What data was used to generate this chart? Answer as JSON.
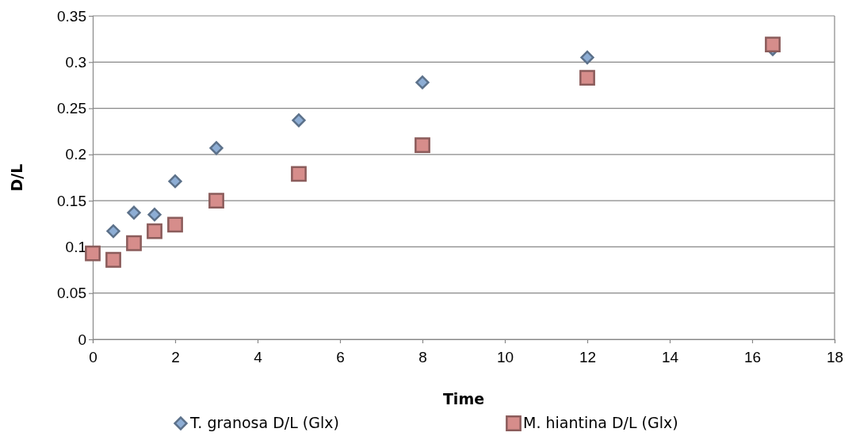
{
  "chart_data": {
    "type": "scatter",
    "xlabel": "Time",
    "ylabel": "D/L",
    "xlim": [
      0,
      18
    ],
    "xticks": [
      0,
      2,
      4,
      6,
      8,
      10,
      12,
      14,
      16,
      18
    ],
    "ylim": [
      0,
      0.35
    ],
    "yticks": [
      0,
      0.05,
      0.1,
      0.15,
      0.2,
      0.25,
      0.3,
      0.35
    ],
    "grid": "y",
    "legend": "bottom",
    "series": [
      {
        "name": "T. granosa D/L (Glx)",
        "color": "#8dadd4",
        "marker": "diamond",
        "x": [
          0.5,
          1,
          1.5,
          2,
          3,
          5,
          8,
          12,
          16.5
        ],
        "values": [
          0.117,
          0.137,
          0.135,
          0.171,
          0.207,
          0.237,
          0.278,
          0.305,
          0.314
        ]
      },
      {
        "name": "M. hiantina D/L (Glx)",
        "color": "#d68d8b",
        "marker": "square",
        "x": [
          0,
          0.5,
          1,
          1.5,
          2,
          3,
          5,
          8,
          12,
          16.5
        ],
        "values": [
          0.093,
          0.086,
          0.104,
          0.117,
          0.124,
          0.15,
          0.179,
          0.21,
          0.283,
          0.319
        ]
      }
    ]
  }
}
